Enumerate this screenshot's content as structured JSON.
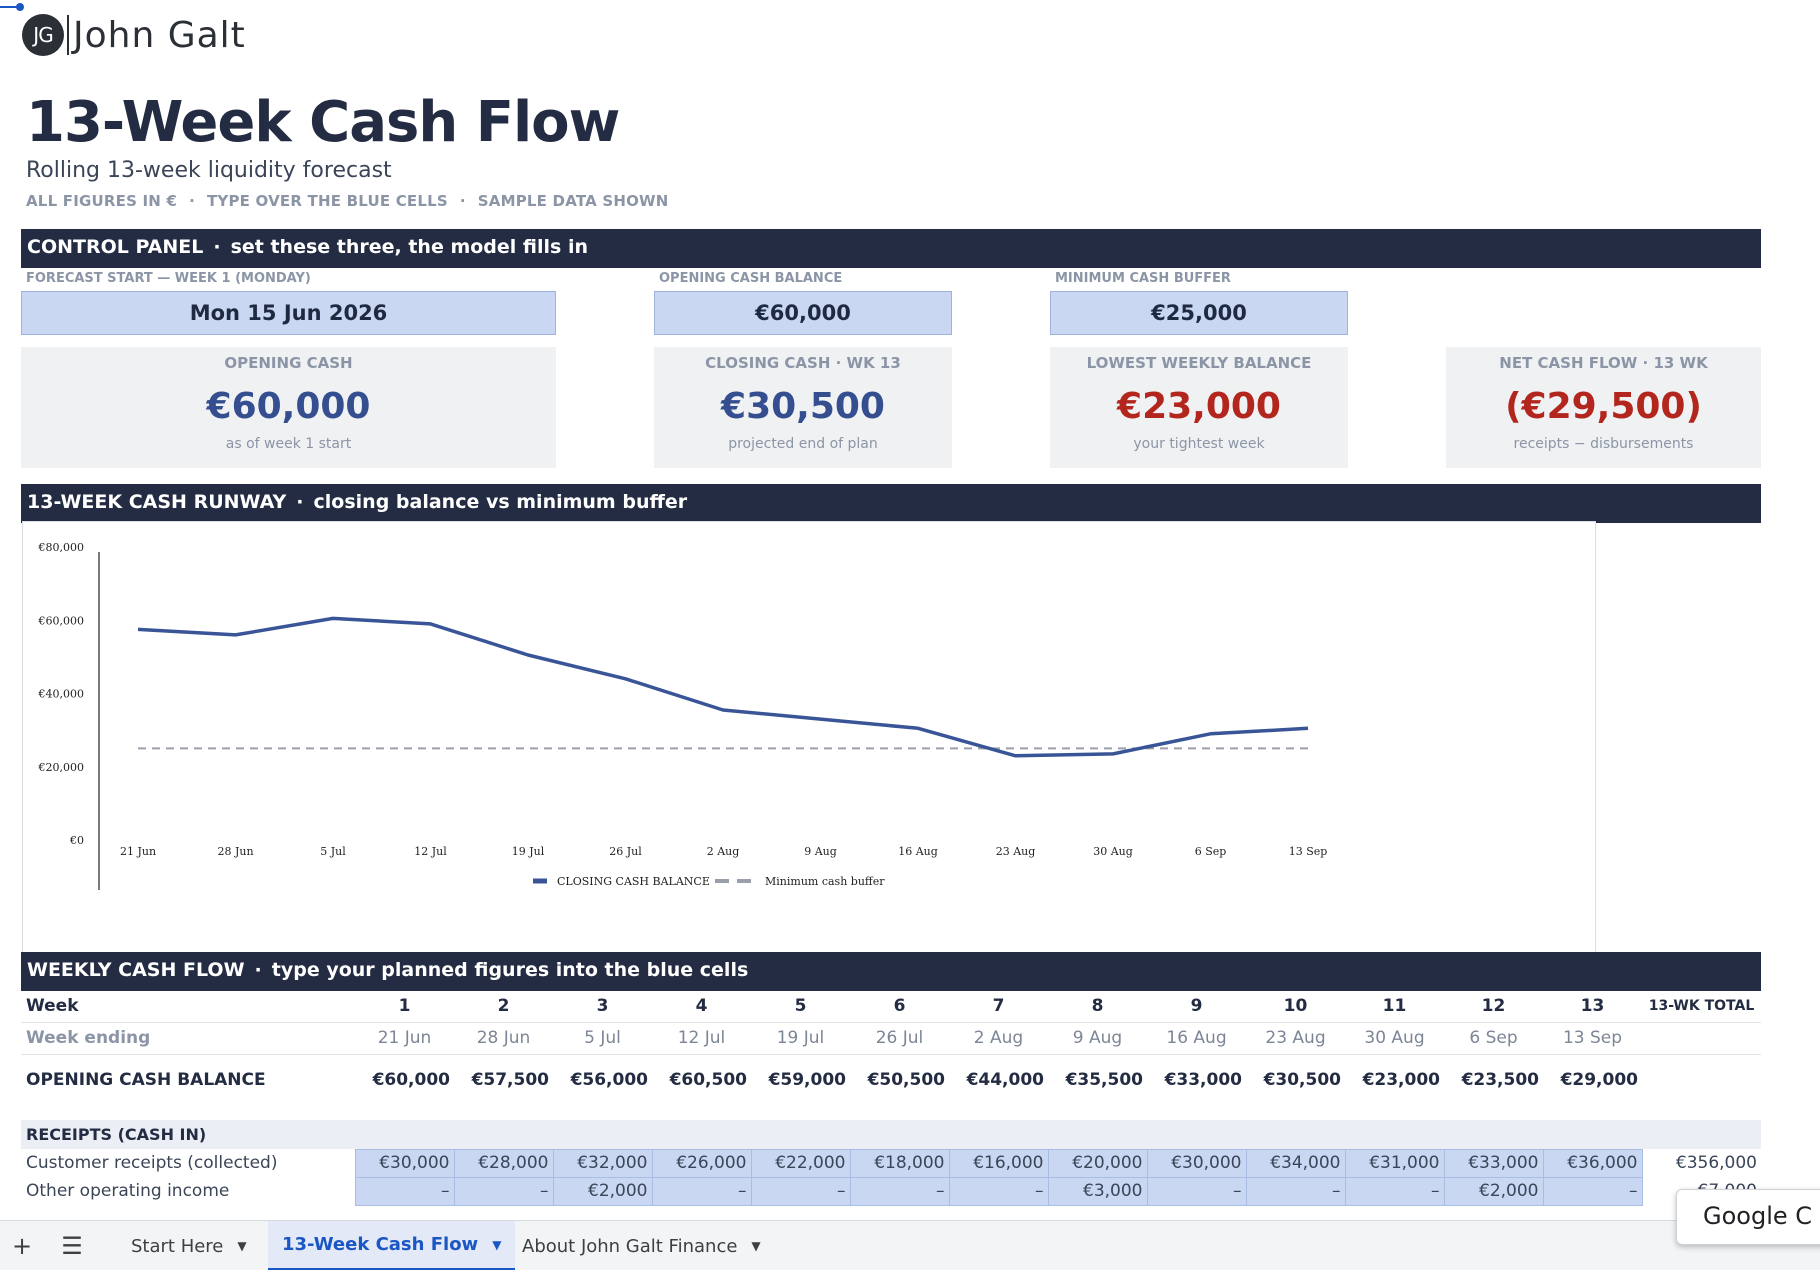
{
  "brand": {
    "initials": "JG",
    "name": "John Galt"
  },
  "header": {
    "title": "13-Week Cash Flow",
    "subtitle": "Rolling 13-week liquidity forecast",
    "tags": [
      "ALL FIGURES IN €",
      "TYPE OVER THE BLUE CELLS",
      "SAMPLE DATA SHOWN"
    ]
  },
  "control_panel": {
    "title": "CONTROL PANEL",
    "subtitle": "set these three, the model fills in",
    "inputs": [
      {
        "label": "FORECAST START — WEEK 1 (MONDAY)",
        "value": "Mon 15 Jun 2026"
      },
      {
        "label": "OPENING CASH BALANCE",
        "value": "€60,000"
      },
      {
        "label": "MINIMUM CASH BUFFER",
        "value": "€25,000"
      }
    ]
  },
  "kpis": [
    {
      "label": "OPENING CASH",
      "value": "€60,000",
      "note": "as of week 1 start",
      "color": "#354e8f"
    },
    {
      "label": "CLOSING CASH · WK 13",
      "value": "€30,500",
      "note": "projected end of plan",
      "color": "#354e8f"
    },
    {
      "label": "LOWEST WEEKLY BALANCE",
      "value": "€23,000",
      "note": "your tightest week",
      "color": "#b3261e"
    },
    {
      "label": "NET CASH FLOW · 13 WK",
      "value": "(€29,500)",
      "note": "receipts − disbursements",
      "color": "#b3261e"
    }
  ],
  "runway": {
    "title": "13-WEEK CASH RUNWAY",
    "subtitle": "closing balance vs minimum buffer"
  },
  "chart_data": {
    "type": "line",
    "x": [
      "21 Jun",
      "28 Jun",
      "5 Jul",
      "12 Jul",
      "19 Jul",
      "26 Jul",
      "2 Aug",
      "9 Aug",
      "16 Aug",
      "23 Aug",
      "30 Aug",
      "6 Sep",
      "13 Sep"
    ],
    "series": [
      {
        "name": "CLOSING CASH BALANCE",
        "values": [
          57500,
          56000,
          60500,
          59000,
          50500,
          44000,
          35500,
          33000,
          30500,
          23000,
          23500,
          29000,
          30500
        ],
        "color": "#3a5597",
        "style": "solid"
      },
      {
        "name": "Minimum cash buffer",
        "values": [
          25000,
          25000,
          25000,
          25000,
          25000,
          25000,
          25000,
          25000,
          25000,
          25000,
          25000,
          25000,
          25000
        ],
        "color": "#9aa0aa",
        "style": "dashed"
      }
    ],
    "yticks": [
      "€80,000",
      "€60,000",
      "€40,000",
      "€20,000",
      "€0"
    ],
    "ylim": [
      0,
      80000
    ],
    "legend": "bottom-center",
    "grid": false
  },
  "weekly": {
    "title": "WEEKLY CASH FLOW",
    "subtitle": "type your planned figures into the blue cells",
    "week_label": "Week",
    "weeks": [
      "1",
      "2",
      "3",
      "4",
      "5",
      "6",
      "7",
      "8",
      "9",
      "10",
      "11",
      "12",
      "13"
    ],
    "total_label": "13-WK TOTAL",
    "week_ending_label": "Week ending",
    "week_ending": [
      "21 Jun",
      "28 Jun",
      "5 Jul",
      "12 Jul",
      "19 Jul",
      "26 Jul",
      "2 Aug",
      "9 Aug",
      "16 Aug",
      "23 Aug",
      "30 Aug",
      "6 Sep",
      "13 Sep"
    ],
    "opening_label": "OPENING CASH BALANCE",
    "opening": [
      "€60,000",
      "€57,500",
      "€56,000",
      "€60,500",
      "€59,000",
      "€50,500",
      "€44,000",
      "€35,500",
      "€33,000",
      "€30,500",
      "€23,000",
      "€23,500",
      "€29,000"
    ],
    "receipts_label": "RECEIPTS  (CASH IN)",
    "rows": [
      {
        "label": "Customer receipts (collected)",
        "values": [
          "€30,000",
          "€28,000",
          "€32,000",
          "€26,000",
          "€22,000",
          "€18,000",
          "€16,000",
          "€20,000",
          "€30,000",
          "€34,000",
          "€31,000",
          "€33,000",
          "€36,000"
        ],
        "total": "€356,000"
      },
      {
        "label": "Other operating income",
        "values": [
          "–",
          "–",
          "€2,000",
          "–",
          "–",
          "–",
          "–",
          "€3,000",
          "–",
          "–",
          "–",
          "€2,000",
          "–"
        ],
        "total": "€7,000"
      }
    ]
  },
  "sheet_tabs": {
    "add_icon": "+",
    "menu_icon": "☰",
    "tabs": [
      {
        "label": "Start Here",
        "active": false
      },
      {
        "label": "13-Week Cash Flow",
        "active": true
      },
      {
        "label": "About John Galt Finance",
        "active": false
      }
    ]
  },
  "tooltip": {
    "text": "Google C"
  }
}
